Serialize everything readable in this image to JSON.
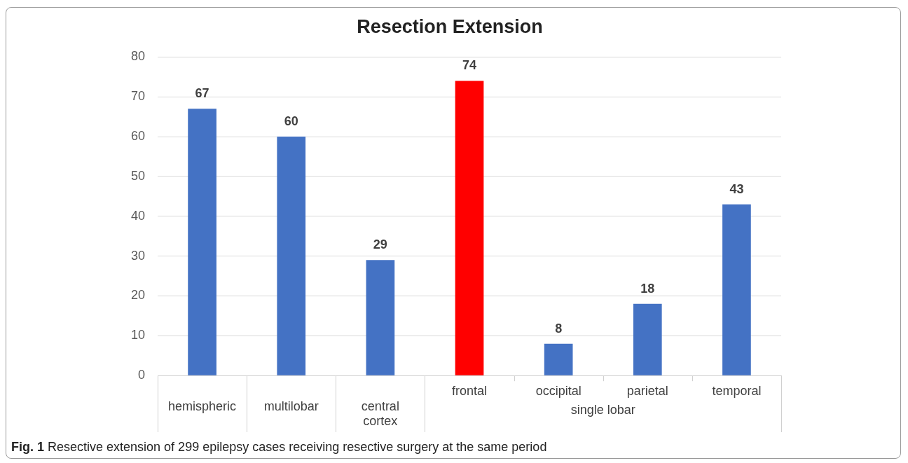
{
  "chart_data": {
    "type": "bar",
    "title": "Resection Extension",
    "categories": [
      "hemispheric",
      "multilobar",
      "central cortex",
      "frontal",
      "occipital",
      "parietal",
      "temporal"
    ],
    "values": [
      67,
      60,
      29,
      74,
      8,
      18,
      43
    ],
    "colors": [
      "#4472c4",
      "#4472c4",
      "#4472c4",
      "#ff0000",
      "#4472c4",
      "#4472c4",
      "#4472c4"
    ],
    "ylim": [
      0,
      80
    ],
    "yticks": [
      0,
      10,
      20,
      30,
      40,
      50,
      60,
      70,
      80
    ],
    "grid": "y",
    "data_labels": true,
    "annotations": [
      "single lobar",
      "Fig. 1 Resective extension of 299 epilepsy cases receiving resective surgery at the same period"
    ]
  }
}
